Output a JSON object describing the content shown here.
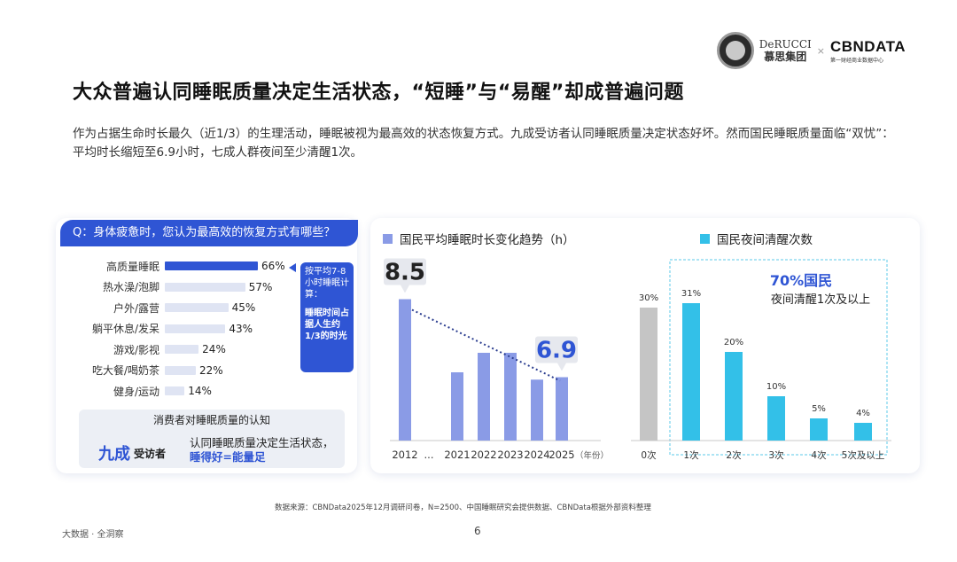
{
  "logos": {
    "derucci_en": "DeRUCCI",
    "derucci_cn": "慕思集团",
    "separator": "×",
    "cbn_en": "CBNDATA",
    "cbn_cn": "第一财经商业数据中心"
  },
  "title": "大众普遍认同睡眠质量决定生活状态，“短睡”与“易醒”却成普遍问题",
  "intro": "作为占据生命时长最久（近1/3）的生理活动，睡眠被视为最高效的状态恢复方式。九成受访者认同睡眠质量决定状态好坏。然而国民睡眠质量面临“双忧”：平均时长缩短至6.9小时，七成人群夜间至少清醒1次。",
  "left_panel": {
    "question": "Q：身体疲惫时，您认为最高效的恢复方式有哪些？",
    "callout_main": "按平均7-8小时睡眠计算：",
    "callout_sub": "睡眠时间占据人生约1/3的时光",
    "perception_head": "消费者对睡眠质量的认知",
    "perception_big": "九成",
    "perception_big_sub": "受访者",
    "perception_desc": "认同睡眠质量决定生活状态，",
    "perception_desc_hl": "睡得好=能量足"
  },
  "colors": {
    "primary": "#2f55d4",
    "bar_light": "#dfe4f3",
    "sleep_bar": "#8a9be6",
    "wake_bar": "#33c0e8",
    "gray_bar": "#c5c5c5"
  },
  "chart_data": [
    {
      "type": "bar",
      "orientation": "horizontal",
      "title": "Q：身体疲惫时，您认为最高效的恢复方式有哪些？",
      "categories": [
        "高质量睡眠",
        "热水澡/泡脚",
        "户外/露营",
        "躺平休息/发呆",
        "游戏/影视",
        "吃大餐/喝奶茶",
        "健身/运动"
      ],
      "values": [
        66,
        57,
        45,
        43,
        24,
        22,
        14
      ],
      "value_labels": [
        "66%",
        "57%",
        "45%",
        "43%",
        "24%",
        "22%",
        "14%"
      ],
      "highlight_index": 0,
      "unit": "%"
    },
    {
      "type": "bar",
      "title": "国民平均睡眠时长变化趋势（h）",
      "categories": [
        "2012",
        "...",
        "2021",
        "2022",
        "2023",
        "2024",
        "2025"
      ],
      "x_unit": "（年份）",
      "values": [
        8.5,
        null,
        7.0,
        7.4,
        7.4,
        6.85,
        6.9
      ],
      "annotations": [
        {
          "category": "2012",
          "label": "8.5"
        },
        {
          "category": "2025",
          "label": "6.9"
        }
      ],
      "trend_line": "dotted, from 2012 to 2025",
      "ylim": [
        5.6,
        8.6
      ]
    },
    {
      "type": "bar",
      "title": "国民夜间清醒次数",
      "categories": [
        "0次",
        "1次",
        "2次",
        "3次",
        "4次",
        "5次及以上"
      ],
      "values": [
        30,
        31,
        20,
        10,
        5,
        4
      ],
      "value_labels": [
        "30%",
        "31%",
        "20%",
        "10%",
        "5%",
        "4%"
      ],
      "highlight_box": {
        "main": "70%国民",
        "sub": "夜间清醒1次及以上"
      },
      "ylim": [
        0,
        35
      ]
    }
  ],
  "footnote": "数据来源：CBNData2025年12月调研问卷，N=2500、中国睡眠研究会提供数据、CBNData根据外部资料整理",
  "footer_left": "大数据 · 全洞察",
  "page_number": "6"
}
